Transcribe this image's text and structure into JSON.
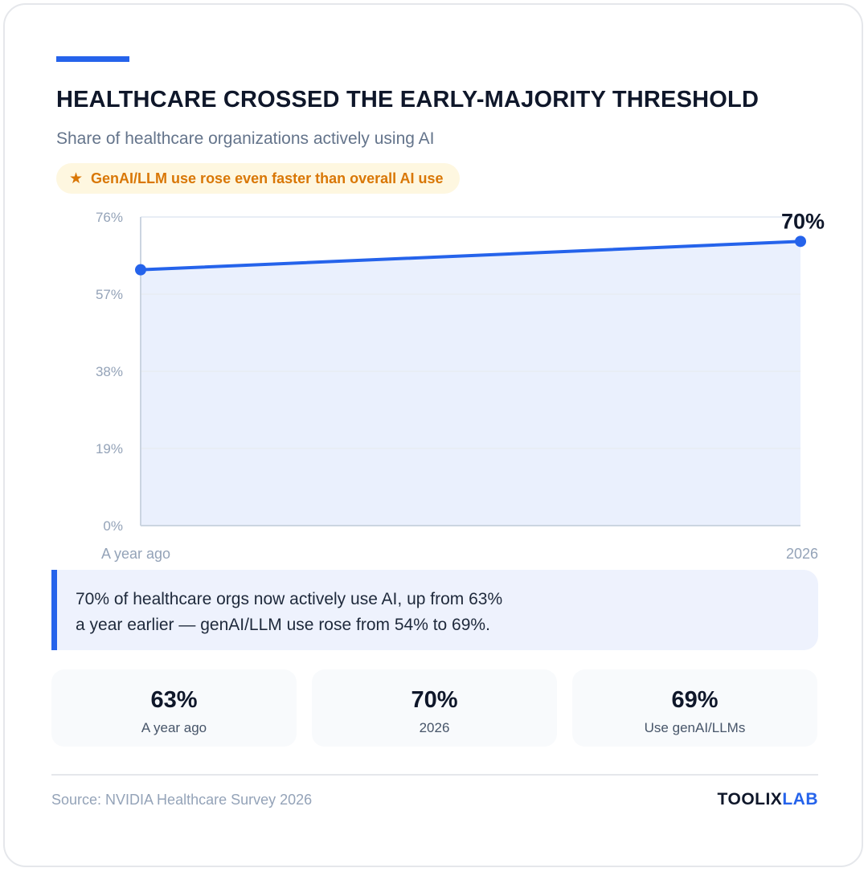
{
  "header": {
    "title": "HEALTHCARE CROSSED THE EARLY-MAJORITY THRESHOLD",
    "subtitle": "Share of healthcare organizations actively using AI",
    "callout": {
      "icon": "star-icon",
      "text": "GenAI/LLM use rose even faster than overall AI use"
    }
  },
  "chart_data": {
    "type": "area",
    "categories": [
      "A year ago",
      "2026"
    ],
    "values": [
      63,
      70
    ],
    "ylim": [
      0,
      76
    ],
    "y_ticks": [
      "0%",
      "19%",
      "38%",
      "57%",
      "76%"
    ],
    "end_label": "70%",
    "grid": true,
    "colors": {
      "line": "#2563eb",
      "fill": "#eaf0fd",
      "grid": "#e8edf5",
      "axis": "#cbd5e1"
    }
  },
  "insight": {
    "lines": [
      "70% of healthcare orgs now actively use AI, up from 63%",
      "a year earlier — genAI/LLM use rose from 54% to 69%."
    ]
  },
  "stats": [
    {
      "value": "63%",
      "label": "A year ago"
    },
    {
      "value": "70%",
      "label": "2026"
    },
    {
      "value": "69%",
      "label": "Use genAI/LLMs"
    }
  ],
  "footer": {
    "source": "Source: NVIDIA Healthcare Survey 2026",
    "brand_primary": "TOOLIX",
    "brand_accent": "LAB"
  },
  "colors": {
    "accent": "#2563eb",
    "highlight": "#d97706"
  }
}
